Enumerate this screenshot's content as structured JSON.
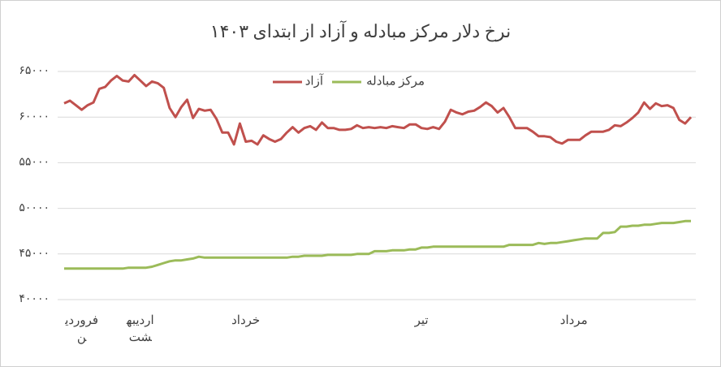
{
  "chart_data": {
    "type": "line",
    "title": "نرخ دلار مرکز مبادله و آزاد از ابتدای ۱۴۰۳",
    "categories": [
      null,
      null,
      null,
      "فروردین",
      null,
      null,
      null,
      null,
      null,
      null,
      null,
      null,
      null,
      "اردیبهشت",
      null,
      null,
      null,
      null,
      null,
      null,
      null,
      null,
      null,
      null,
      null,
      null,
      null,
      null,
      null,
      null,
      null,
      "خرداد",
      null,
      null,
      null,
      null,
      null,
      null,
      null,
      null,
      null,
      null,
      null,
      null,
      null,
      null,
      null,
      null,
      null,
      null,
      null,
      null,
      null,
      null,
      null,
      null,
      null,
      null,
      null,
      null,
      null,
      "تیر",
      null,
      null,
      null,
      null,
      null,
      null,
      null,
      null,
      null,
      null,
      null,
      null,
      null,
      null,
      null,
      null,
      null,
      null,
      null,
      null,
      null,
      null,
      null,
      null,
      null,
      "مرداد",
      null,
      null,
      null,
      null,
      null,
      null,
      null,
      null,
      null,
      null,
      null,
      null,
      null,
      null,
      null,
      null,
      null,
      null,
      null,
      null
    ],
    "series": [
      {
        "name": "آزاد",
        "color": "#c0504d",
        "values": [
          61500,
          61800,
          61300,
          60800,
          61300,
          61600,
          63100,
          63300,
          64000,
          64500,
          64000,
          63900,
          64600,
          64000,
          63400,
          63900,
          63700,
          63200,
          61000,
          60000,
          61100,
          61900,
          59900,
          60900,
          60700,
          60800,
          59800,
          58300,
          58300,
          57000,
          59300,
          57300,
          57400,
          57000,
          58000,
          57600,
          57300,
          57600,
          58300,
          58900,
          58300,
          58800,
          59000,
          58600,
          59400,
          58800,
          58800,
          58600,
          58600,
          58700,
          59100,
          58800,
          58900,
          58800,
          58900,
          58800,
          59000,
          58900,
          58800,
          59200,
          59200,
          58800,
          58700,
          58900,
          58700,
          59500,
          60800,
          60500,
          60300,
          60600,
          60700,
          61100,
          61600,
          61200,
          60500,
          61000,
          60000,
          58800,
          58800,
          58800,
          58400,
          57900,
          57900,
          57800,
          57300,
          57100,
          57500,
          57500,
          57500,
          58000,
          58400,
          58400,
          58400,
          58600,
          59100,
          59000,
          59400,
          59900,
          60500,
          61600,
          60900,
          61500,
          61200,
          61300,
          61000,
          59700,
          59300,
          60000
        ]
      },
      {
        "name": "مرکز مبادله",
        "color": "#9bbb59",
        "values": [
          43400,
          43400,
          43400,
          43400,
          43400,
          43400,
          43400,
          43400,
          43400,
          43400,
          43400,
          43500,
          43500,
          43500,
          43500,
          43600,
          43800,
          44000,
          44200,
          44300,
          44300,
          44400,
          44500,
          44700,
          44600,
          44600,
          44600,
          44600,
          44600,
          44600,
          44600,
          44600,
          44600,
          44600,
          44600,
          44600,
          44600,
          44600,
          44600,
          44700,
          44700,
          44800,
          44800,
          44800,
          44800,
          44900,
          44900,
          44900,
          44900,
          44900,
          45000,
          45000,
          45000,
          45300,
          45300,
          45300,
          45400,
          45400,
          45400,
          45500,
          45500,
          45700,
          45700,
          45800,
          45800,
          45800,
          45800,
          45800,
          45800,
          45800,
          45800,
          45800,
          45800,
          45800,
          45800,
          45800,
          46000,
          46000,
          46000,
          46000,
          46000,
          46200,
          46100,
          46200,
          46200,
          46300,
          46400,
          46500,
          46600,
          46700,
          46700,
          46700,
          47300,
          47300,
          47400,
          48000,
          48000,
          48100,
          48100,
          48200,
          48200,
          48300,
          48400,
          48400,
          48400,
          48500,
          48600,
          48600
        ]
      }
    ],
    "ylim": [
      40000,
      65000
    ],
    "yticks": [
      {
        "value": 40000,
        "label": "۴۰۰۰۰"
      },
      {
        "value": 45000,
        "label": "۴۵۰۰۰"
      },
      {
        "value": 50000,
        "label": "۵۰۰۰۰"
      },
      {
        "value": 55000,
        "label": "۵۵۰۰۰"
      },
      {
        "value": 60000,
        "label": "۶۰۰۰۰"
      },
      {
        "value": 65000,
        "label": "۶۵۰۰۰"
      }
    ],
    "grid": true,
    "legend": "top"
  }
}
